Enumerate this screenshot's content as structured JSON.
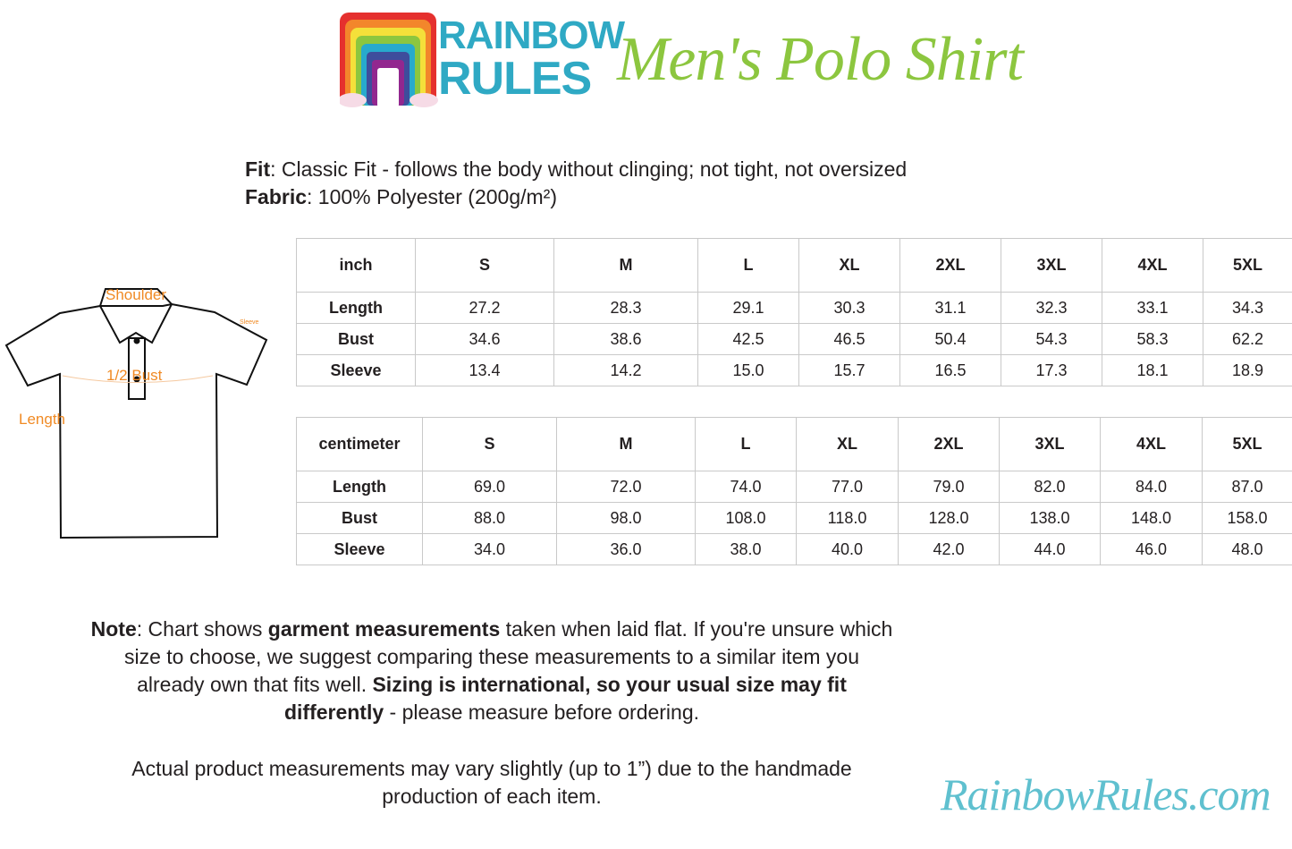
{
  "header": {
    "brand_line1": "RAINBOW",
    "brand_line2": "RULES",
    "title": "Men's Polo Shirt"
  },
  "info": {
    "fit_label": "Fit",
    "fit_value": ": Classic Fit - follows the body without clinging; not tight, not oversized",
    "fabric_label": "Fabric",
    "fabric_value": ": 100% Polyester (200g/m²)"
  },
  "diagram": {
    "shoulder": "Shoulder",
    "sleeve": "Sleeve",
    "bust": "1/2 Bust",
    "length": "Length"
  },
  "inch_table": {
    "headers": [
      "inch",
      "S",
      "M",
      "L",
      "XL",
      "2XL",
      "3XL",
      "4XL",
      "5XL"
    ],
    "rows": [
      [
        "Length",
        "27.2",
        "28.3",
        "29.1",
        "30.3",
        "31.1",
        "32.3",
        "33.1",
        "34.3"
      ],
      [
        "Bust",
        "34.6",
        "38.6",
        "42.5",
        "46.5",
        "50.4",
        "54.3",
        "58.3",
        "62.2"
      ],
      [
        "Sleeve",
        "13.4",
        "14.2",
        "15.0",
        "15.7",
        "16.5",
        "17.3",
        "18.1",
        "18.9"
      ]
    ]
  },
  "cm_table": {
    "headers": [
      "centimeter",
      "S",
      "M",
      "L",
      "XL",
      "2XL",
      "3XL",
      "4XL",
      "5XL"
    ],
    "rows": [
      [
        "Length",
        "69.0",
        "72.0",
        "74.0",
        "77.0",
        "79.0",
        "82.0",
        "84.0",
        "87.0"
      ],
      [
        "Bust",
        "88.0",
        "98.0",
        "108.0",
        "118.0",
        "128.0",
        "138.0",
        "148.0",
        "158.0"
      ],
      [
        "Sleeve",
        "34.0",
        "36.0",
        "38.0",
        "40.0",
        "42.0",
        "44.0",
        "46.0",
        "48.0"
      ]
    ]
  },
  "note": {
    "label": "Note",
    "t1": ": Chart shows ",
    "b1": "garment measurements",
    "t2": " taken when laid flat. If you're unsure which size to choose, we suggest comparing these measurements to a similar item you already own that fits well. ",
    "b2": "Sizing is international, so your usual size may fit differently",
    "t3": " - please measure before ordering.",
    "second": "Actual product measurements may vary slightly (up to 1”) due to the handmade production of each item."
  },
  "footer": {
    "site": "RainbowRules.com"
  },
  "colors": {
    "brand_blue": "#2fa9c4",
    "title_green": "#8cc63f",
    "diagram_orange": "#f08a24"
  }
}
